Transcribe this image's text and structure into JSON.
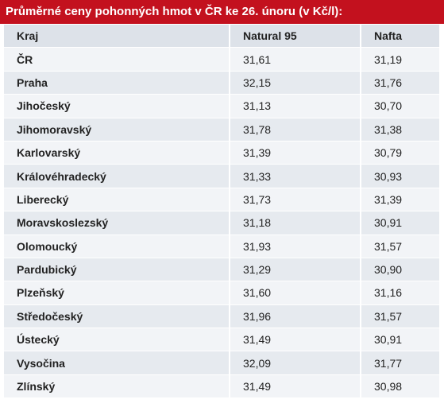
{
  "header": {
    "title": "Průměrné ceny pohonných hmot v ČR ke 26. únoru (v Kč/l):"
  },
  "table": {
    "columns": [
      "Kraj",
      "Natural 95",
      "Nafta"
    ],
    "rows": [
      [
        "ČR",
        "31,61",
        "31,19"
      ],
      [
        "Praha",
        "32,15",
        "31,76"
      ],
      [
        "Jihočeský",
        "31,13",
        "30,70"
      ],
      [
        "Jihomoravský",
        "31,78",
        "31,38"
      ],
      [
        "Karlovarský",
        "31,39",
        "30,79"
      ],
      [
        "Královéhradecký",
        "31,33",
        "30,93"
      ],
      [
        "Liberecký",
        "31,73",
        "31,39"
      ],
      [
        "Moravskoslezský",
        "31,18",
        "30,91"
      ],
      [
        "Olomoucký",
        "31,93",
        "31,57"
      ],
      [
        "Pardubický",
        "31,29",
        "30,90"
      ],
      [
        "Plzeňský",
        "31,60",
        "31,16"
      ],
      [
        "Středočeský",
        "31,96",
        "31,57"
      ],
      [
        "Ústecký",
        "31,49",
        "30,91"
      ],
      [
        "Vysočina",
        "32,09",
        "31,77"
      ],
      [
        "Zlínský",
        "31,49",
        "30,98"
      ]
    ]
  }
}
